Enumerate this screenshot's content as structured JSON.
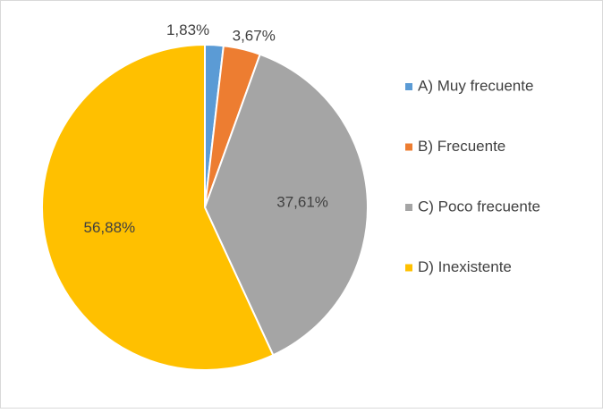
{
  "chart_data": {
    "type": "pie",
    "categories": [
      "A) Muy frecuente",
      "B) Frecuente",
      "C) Poco frecuente",
      "D) Inexistente"
    ],
    "values": [
      1.83,
      3.67,
      37.61,
      56.88
    ],
    "value_labels": [
      "1,83%",
      "3,67%",
      "37,61%",
      "56,88%"
    ],
    "colors": [
      "#5b9bd5",
      "#ed7d31",
      "#a5a5a5",
      "#ffc000"
    ],
    "legend": "right"
  }
}
